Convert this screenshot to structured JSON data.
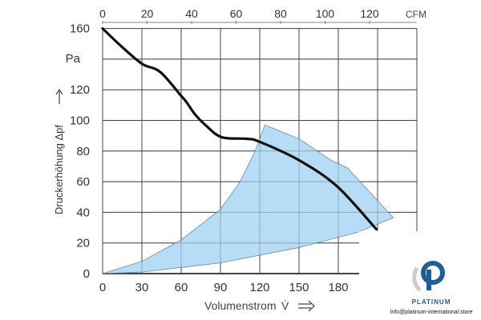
{
  "chart_data": {
    "type": "line",
    "title": "",
    "xlabel": "Volumenstrom V̇ ⟹",
    "xlabel_text": "Volumenstrom",
    "xlabel_symbol": "V̇",
    "ylabel": "Druckerhöhung Δpf ⟹",
    "ylabel_text": "Druckerhöhung Δpf",
    "yunit": "Pa",
    "x2unit": "CFM",
    "xlim": [
      0,
      240
    ],
    "ylim": [
      0,
      160
    ],
    "xticks": [
      0,
      30,
      60,
      90,
      120,
      150,
      180
    ],
    "yticks": [
      0,
      20,
      40,
      60,
      80,
      100,
      120,
      160
    ],
    "x2ticks": [
      0,
      20,
      40,
      60,
      80,
      100,
      120
    ],
    "grid": true,
    "series": [
      {
        "x": [
          0,
          13.5,
          30,
          44,
          60,
          64,
          70.5,
          79,
          91,
          110,
          120,
          150,
          179,
          209
        ],
        "y": [
          160,
          149,
          137,
          131.6,
          116,
          112,
          104,
          96.6,
          89,
          88,
          86,
          74,
          57,
          29
        ],
        "color": "#111111"
      }
    ],
    "operating_region": {
      "color": "#b7dcf6",
      "x": [
        0,
        30,
        60,
        90,
        105,
        116,
        124,
        150,
        174.5,
        187,
        222,
        195,
        150,
        90,
        30,
        0
      ],
      "y": [
        0,
        8,
        22,
        42,
        60,
        79,
        97,
        88,
        74,
        69,
        36.5,
        27,
        17,
        7,
        1,
        0
      ]
    }
  },
  "logo": {
    "brand": "PLATINUM",
    "email": "Info@platinum-international.store",
    "color": "#1f5f96"
  }
}
